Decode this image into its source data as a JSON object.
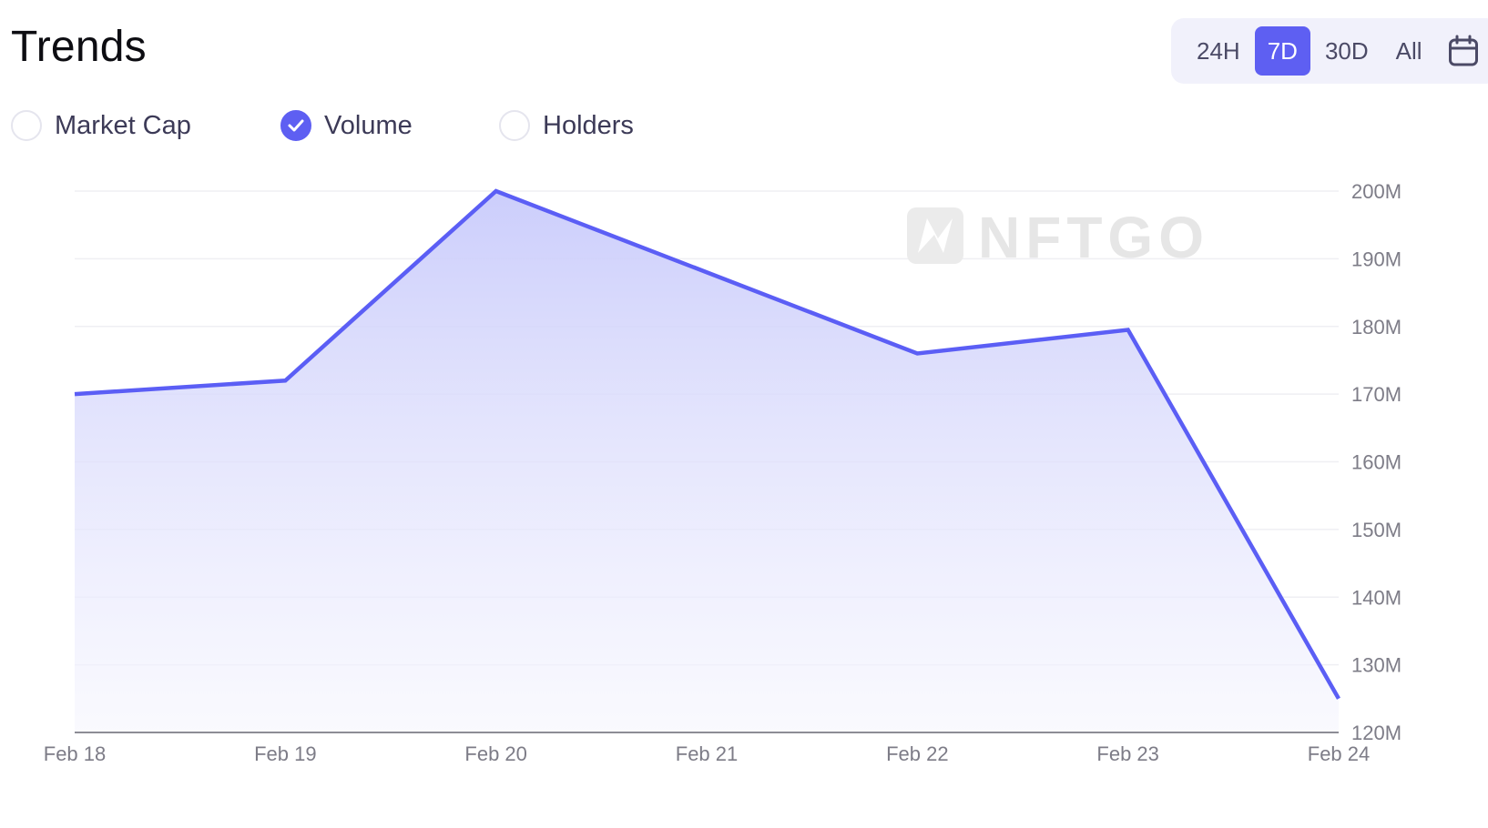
{
  "header": {
    "title": "Trends"
  },
  "range_toggle": {
    "options": [
      "24H",
      "7D",
      "30D",
      "All"
    ],
    "selected": "7D",
    "calendar_icon": "calendar-icon"
  },
  "metrics": {
    "items": [
      {
        "label": "Market Cap",
        "checked": false
      },
      {
        "label": "Volume",
        "checked": true
      },
      {
        "label": "Holders",
        "checked": false
      }
    ]
  },
  "watermark": {
    "text": "NFTGO",
    "icon": "nftgo-logo-icon"
  },
  "colors": {
    "accent": "#5e5ff2",
    "line": "#5b5ef5",
    "area_top": "#c9cbfb",
    "area_bottom": "#f6f6fe",
    "grid": "#efeff3",
    "axis": "#8d8d95",
    "tick_text": "#7d7c87"
  },
  "chart_data": {
    "type": "area",
    "title": "",
    "xlabel": "",
    "ylabel": "",
    "x": [
      "Feb 18",
      "Feb 19",
      "Feb 20",
      "Feb 21",
      "Feb 22",
      "Feb 23",
      "Feb 24"
    ],
    "series": [
      {
        "name": "Volume",
        "values": [
          170,
          172,
          200,
          188,
          176,
          179.5,
          125
        ]
      }
    ],
    "y_unit": "M",
    "ylim": [
      120,
      200
    ],
    "yticks": [
      120,
      130,
      140,
      150,
      160,
      170,
      180,
      190,
      200
    ],
    "ytick_labels": [
      "120M",
      "130M",
      "140M",
      "150M",
      "160M",
      "170M",
      "180M",
      "190M",
      "200M"
    ],
    "y_axis_side": "right",
    "grid": true,
    "legend": "none"
  }
}
